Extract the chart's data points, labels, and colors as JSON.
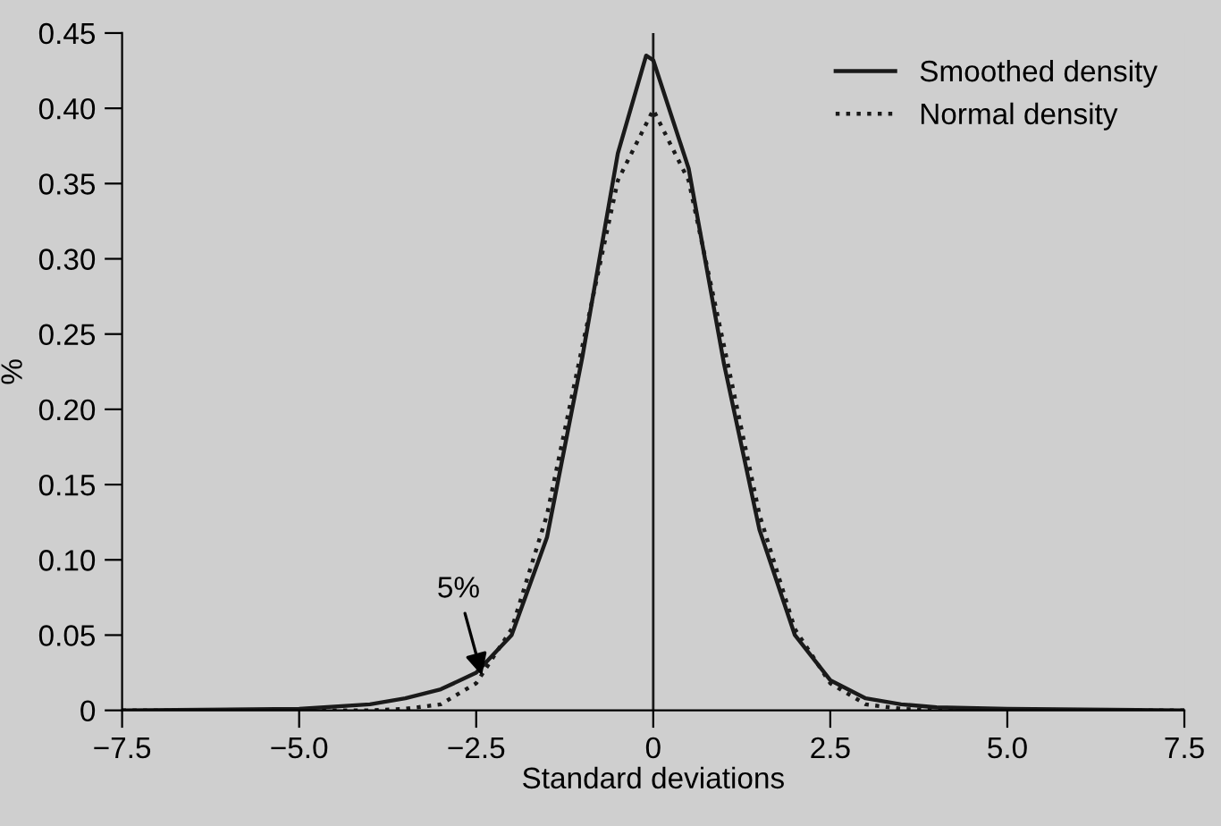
{
  "chart_data": {
    "type": "line",
    "xlabel": "Standard deviations",
    "ylabel": "%",
    "xlim": [
      -7.5,
      7.5
    ],
    "xticks": [
      {
        "value": -7.5,
        "label": "−7.5"
      },
      {
        "value": -5,
        "label": "−5.0"
      },
      {
        "value": -2.5,
        "label": "−2.5"
      },
      {
        "value": 0,
        "label": "0"
      },
      {
        "value": 2.5,
        "label": "2.5"
      },
      {
        "value": 5,
        "label": "5.0"
      },
      {
        "value": 7.5,
        "label": "7.5"
      }
    ],
    "ylim": [
      0,
      0.45
    ],
    "yticks": [
      {
        "value": 0,
        "label": "0"
      },
      {
        "value": 0.05,
        "label": "0.05"
      },
      {
        "value": 0.1,
        "label": "0.10"
      },
      {
        "value": 0.15,
        "label": "0.15"
      },
      {
        "value": 0.2,
        "label": "0.20"
      },
      {
        "value": 0.25,
        "label": "0.25"
      },
      {
        "value": 0.3,
        "label": "0.30"
      },
      {
        "value": 0.35,
        "label": "0.35"
      },
      {
        "value": 0.4,
        "label": "0.40"
      },
      {
        "value": 0.45,
        "label": "0.45"
      }
    ],
    "grid": false,
    "legend": "top right",
    "series": [
      {
        "name": "Smoothed density",
        "color": "#1a1a1a",
        "line_style": "solid",
        "x": [
          -7.5,
          -5,
          -4,
          -3.5,
          -3,
          -2.5,
          -2,
          -1.5,
          -1,
          -0.5,
          -0.1,
          0,
          0.5,
          1,
          1.5,
          2,
          2.5,
          3,
          3.5,
          4,
          5,
          7.5
        ],
        "values": [
          0,
          0.001,
          0.004,
          0.008,
          0.014,
          0.025,
          0.05,
          0.115,
          0.235,
          0.37,
          0.435,
          0.432,
          0.36,
          0.23,
          0.12,
          0.05,
          0.02,
          0.008,
          0.004,
          0.002,
          0.001,
          0
        ]
      },
      {
        "name": "Normal density",
        "color": "#1a1a1a",
        "line_style": "dotted",
        "x": [
          -7.5,
          -4,
          -3.5,
          -3,
          -2.5,
          -2,
          -1.5,
          -1,
          -0.5,
          0,
          0.5,
          1,
          1.5,
          2,
          2.5,
          3,
          3.5,
          4,
          7.5
        ],
        "values": [
          0,
          0,
          0.001,
          0.004,
          0.018,
          0.054,
          0.13,
          0.242,
          0.352,
          0.399,
          0.352,
          0.242,
          0.13,
          0.054,
          0.018,
          0.004,
          0.001,
          0,
          0
        ]
      }
    ],
    "ref_lines": [
      {
        "axis": "x",
        "value": 0,
        "color": "#1a1a1a",
        "line_style": "solid"
      }
    ],
    "annotations": [
      {
        "text": "5%",
        "x": -2.4,
        "y": 0.02
      }
    ]
  }
}
